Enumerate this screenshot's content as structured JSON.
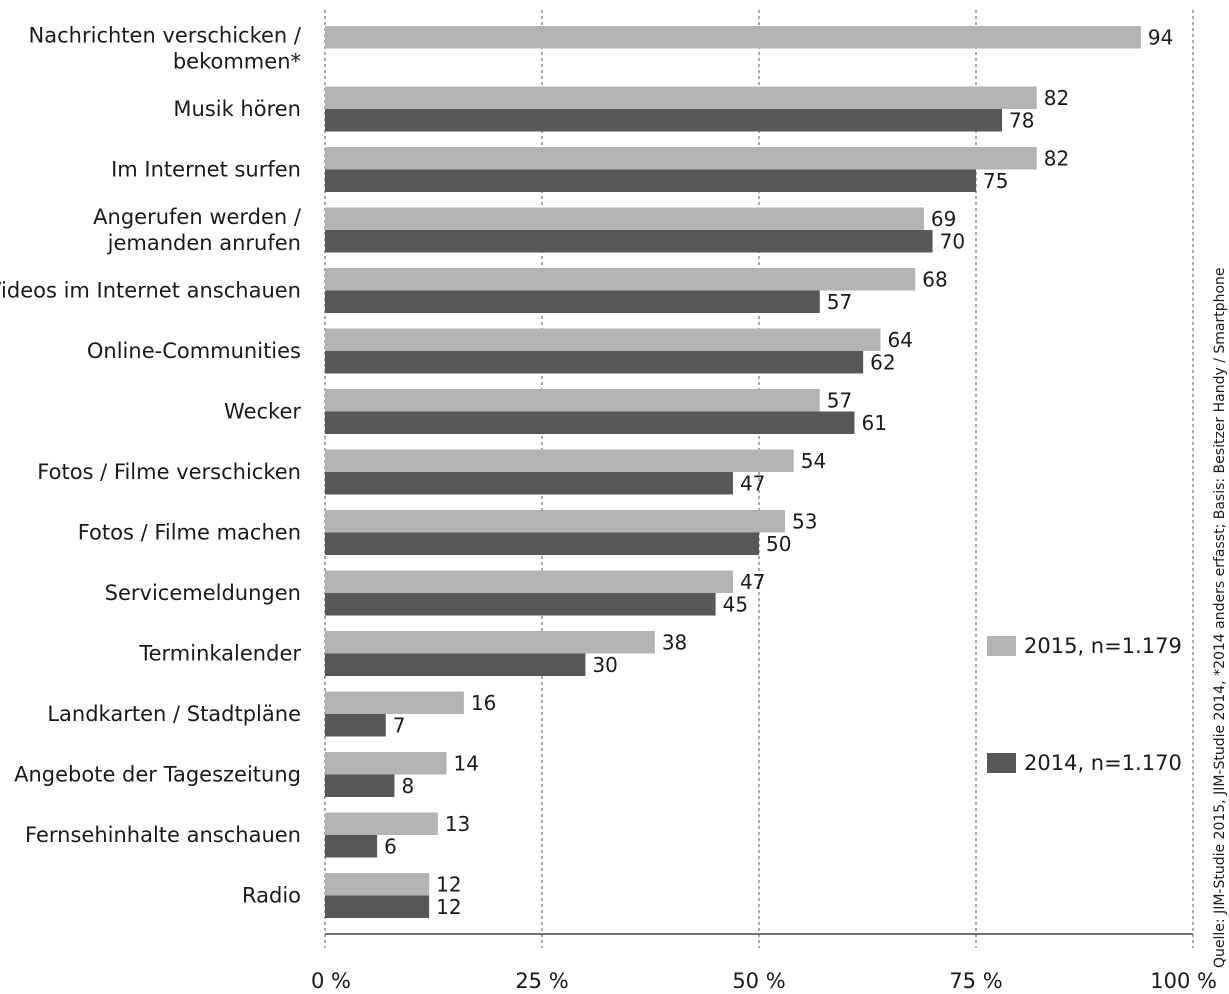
{
  "chart_data": {
    "type": "bar",
    "orientation": "horizontal",
    "categories": [
      [
        "Nachrichten verschicken /",
        "bekommen*"
      ],
      [
        "Musik hören"
      ],
      [
        "Im Internet surfen"
      ],
      [
        "Angerufen werden /",
        "jemanden anrufen"
      ],
      [
        "Videos im Internet anschauen"
      ],
      [
        "Online-Communities"
      ],
      [
        "Wecker"
      ],
      [
        "Fotos / Filme verschicken"
      ],
      [
        "Fotos / Filme machen"
      ],
      [
        "Servicemeldungen"
      ],
      [
        "Terminkalender"
      ],
      [
        "Landkarten / Stadtpläne"
      ],
      [
        "Angebote der Tageszeitung"
      ],
      [
        "Fernsehinhalte anschauen"
      ],
      [
        "Radio"
      ]
    ],
    "series": [
      {
        "name": "2015, n=1.179",
        "color": "#b3b3b3",
        "values": [
          94,
          82,
          82,
          69,
          68,
          64,
          57,
          54,
          53,
          47,
          38,
          16,
          14,
          13,
          12
        ]
      },
      {
        "name": "2014, n=1.170",
        "color": "#575757",
        "values": [
          null,
          78,
          75,
          70,
          57,
          62,
          61,
          47,
          50,
          45,
          30,
          7,
          8,
          6,
          12
        ]
      }
    ],
    "xlim": [
      0,
      100
    ],
    "x_ticks": [
      0,
      25,
      50,
      75,
      100
    ],
    "x_tick_labels": [
      "0 %",
      "25 %",
      "50 %",
      "75 %",
      "100 %"
    ],
    "grid": "vertical-dashed",
    "legend_position": "right",
    "source_note": "Quelle: JIM-Studie 2015, JIM-Studie 2014, *2014 anders erfasst; Basis: Besitzer Handy / Smartphone"
  }
}
